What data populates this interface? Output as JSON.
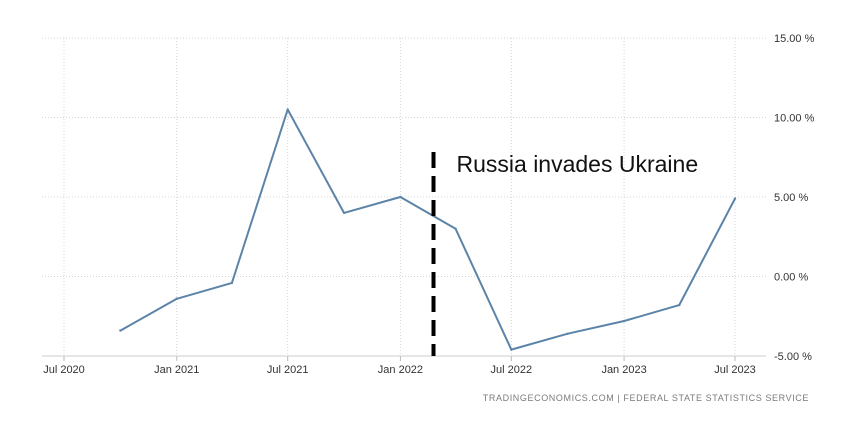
{
  "chart_data": {
    "type": "line",
    "title": "",
    "xlabel": "",
    "ylabel": "",
    "x": [
      "2020-10-01",
      "2021-01-01",
      "2021-04-01",
      "2021-07-01",
      "2021-10-01",
      "2022-01-01",
      "2022-04-01",
      "2022-07-01",
      "2022-10-01",
      "2023-01-01",
      "2023-04-01",
      "2023-07-01"
    ],
    "series": [
      {
        "values": [
          -3.4,
          -1.4,
          -0.4,
          10.5,
          4.0,
          5.0,
          3.0,
          -4.6,
          -3.6,
          -2.8,
          -1.8,
          4.9
        ]
      }
    ],
    "ylim": [
      -5,
      15
    ],
    "yticks": [
      -5,
      0,
      5,
      10,
      15
    ],
    "ytick_labels": [
      "-5.00 %",
      "0.00 %",
      "5.00 %",
      "10.00 %",
      "15.00 %"
    ],
    "xticks": [
      "Jul 2020",
      "Jan 2021",
      "Jul 2021",
      "Jan 2022",
      "Jul 2022",
      "Jan 2023",
      "Jul 2023"
    ],
    "xtick_dates": [
      "2020-07-01",
      "2021-01-01",
      "2021-07-01",
      "2022-01-01",
      "2022-07-01",
      "2023-01-01",
      "2023-07-01"
    ],
    "grid": true,
    "annotations": [
      {
        "text": "Russia invades Ukraine",
        "x": "2022-02-24",
        "style": "dashed vertical line"
      }
    ],
    "colors": {
      "line": "#5b84a8",
      "grid": "#d4d4d4",
      "marker_line": "#000000"
    }
  },
  "source_text": "TRADINGECONOMICS.COM  |  FEDERAL STATE STATISTICS SERVICE"
}
